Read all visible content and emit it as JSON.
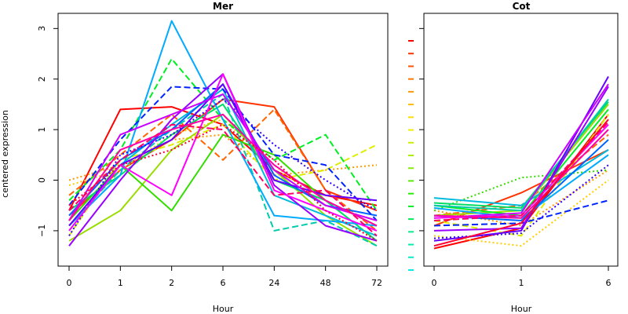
{
  "chart_data": [
    {
      "type": "line",
      "title": "Mer",
      "xlabel": "Hour",
      "ylabel": "centered expression",
      "categories": [
        "0",
        "1",
        "2",
        "6",
        "24",
        "48",
        "72"
      ],
      "ylim": [
        -1.7,
        3.3
      ],
      "yticks": [
        -1,
        0,
        1,
        2,
        3
      ],
      "series": [
        {
          "color": "#ff0000",
          "style": "solid",
          "values": [
            -0.6,
            1.4,
            1.45,
            1.1,
            0.2,
            -0.3,
            -0.5
          ]
        },
        {
          "color": "#ff3300",
          "style": "solid",
          "values": [
            -0.7,
            0.2,
            0.8,
            1.6,
            1.45,
            -0.2,
            -0.6
          ]
        },
        {
          "color": "#ff6600",
          "style": "dashed",
          "values": [
            -0.3,
            0.5,
            1.3,
            0.4,
            1.4,
            -0.2,
            -1.0
          ]
        },
        {
          "color": "#ff9900",
          "style": "dotted",
          "values": [
            0.0,
            0.3,
            0.8,
            0.9,
            0.1,
            0.2,
            0.3
          ]
        },
        {
          "color": "#ffcc00",
          "style": "dotted",
          "values": [
            -0.1,
            0.2,
            0.9,
            1.2,
            0.3,
            -0.5,
            -0.8
          ]
        },
        {
          "color": "#ddee00",
          "style": "dashed",
          "values": [
            -1.1,
            0.4,
            0.7,
            1.1,
            0.0,
            0.2,
            0.7
          ]
        },
        {
          "color": "#99dd00",
          "style": "solid",
          "values": [
            -1.2,
            -0.6,
            0.6,
            1.3,
            0.2,
            -0.7,
            -1.3
          ]
        },
        {
          "color": "#33dd00",
          "style": "solid",
          "values": [
            -0.8,
            0.3,
            -0.6,
            0.9,
            0.5,
            -0.4,
            -0.9
          ]
        },
        {
          "color": "#00ee22",
          "style": "dashed",
          "values": [
            -0.4,
            0.6,
            2.4,
            1.2,
            0.4,
            0.9,
            -0.6
          ]
        },
        {
          "color": "#00dd66",
          "style": "solid",
          "values": [
            -0.6,
            0.1,
            0.9,
            1.5,
            0.0,
            -0.4,
            -1.2
          ]
        },
        {
          "color": "#00ccaa",
          "style": "dashed",
          "values": [
            -0.9,
            0.2,
            1.0,
            1.7,
            -1.0,
            -0.8,
            -1.3
          ]
        },
        {
          "color": "#00bbdd",
          "style": "solid",
          "values": [
            -1.0,
            0.3,
            1.1,
            1.8,
            -0.3,
            -0.7,
            -1.1
          ]
        },
        {
          "color": "#00aaff",
          "style": "solid",
          "values": [
            -0.9,
            0.1,
            3.15,
            1.2,
            -0.7,
            -0.8,
            -0.9
          ]
        },
        {
          "color": "#0066ff",
          "style": "solid",
          "values": [
            -0.7,
            0.4,
            1.0,
            1.9,
            0.1,
            -0.5,
            -0.7
          ]
        },
        {
          "color": "#0022ff",
          "style": "dashed",
          "values": [
            -0.5,
            0.8,
            1.85,
            1.8,
            0.5,
            0.3,
            -0.8
          ]
        },
        {
          "color": "#3300ff",
          "style": "dotted",
          "values": [
            -1.1,
            0.5,
            0.9,
            1.6,
            0.7,
            0.0,
            -0.6
          ]
        },
        {
          "color": "#6600ff",
          "style": "solid",
          "values": [
            -0.9,
            0.3,
            0.8,
            1.9,
            0.0,
            -0.3,
            -0.4
          ]
        },
        {
          "color": "#9900ff",
          "style": "solid",
          "values": [
            -1.3,
            0.0,
            1.2,
            2.1,
            -0.1,
            -0.9,
            -1.2
          ]
        },
        {
          "color": "#cc00ff",
          "style": "solid",
          "values": [
            -0.8,
            0.9,
            1.3,
            1.7,
            0.2,
            -0.5,
            -0.8
          ]
        },
        {
          "color": "#ff00ff",
          "style": "solid",
          "values": [
            -1.0,
            0.3,
            -0.3,
            2.1,
            -0.2,
            -0.6,
            -1.0
          ]
        },
        {
          "color": "#ff00aa",
          "style": "solid",
          "values": [
            -0.8,
            0.6,
            1.0,
            1.3,
            0.3,
            -0.4,
            -0.9
          ]
        },
        {
          "color": "#ff0066",
          "style": "dashed",
          "values": [
            -0.6,
            0.4,
            1.1,
            1.0,
            -0.3,
            -0.2,
            -1.1
          ]
        },
        {
          "color": "#ff0033",
          "style": "dotted",
          "values": [
            -0.5,
            0.3,
            0.6,
            1.1,
            0.4,
            -0.6,
            -1.2
          ]
        }
      ]
    },
    {
      "type": "line",
      "title": "Cot",
      "xlabel": "Hour",
      "categories": [
        "0",
        "1",
        "6"
      ],
      "ylim": [
        -1.7,
        3.3
      ],
      "series": [
        {
          "color": "#ff0000",
          "style": "solid",
          "values": [
            -1.35,
            -0.95,
            1.3
          ]
        },
        {
          "color": "#ff3300",
          "style": "solid",
          "values": [
            -0.9,
            -0.25,
            0.6
          ]
        },
        {
          "color": "#ff6600",
          "style": "dashed",
          "values": [
            -0.7,
            -0.5,
            0.9
          ]
        },
        {
          "color": "#ff9900",
          "style": "dotted",
          "values": [
            -0.6,
            -0.9,
            0.2
          ]
        },
        {
          "color": "#ffcc00",
          "style": "dotted",
          "values": [
            -1.1,
            -1.3,
            0.0
          ]
        },
        {
          "color": "#ddee00",
          "style": "dashed",
          "values": [
            -0.8,
            -1.1,
            1.3
          ]
        },
        {
          "color": "#99dd00",
          "style": "solid",
          "values": [
            -0.7,
            -0.6,
            1.5
          ]
        },
        {
          "color": "#33dd00",
          "style": "dotted",
          "values": [
            -0.6,
            0.05,
            0.2
          ]
        },
        {
          "color": "#00ee22",
          "style": "solid",
          "values": [
            -0.5,
            -0.7,
            1.4
          ]
        },
        {
          "color": "#00dd66",
          "style": "solid",
          "values": [
            -0.45,
            -0.55,
            1.55
          ]
        },
        {
          "color": "#00ccaa",
          "style": "solid",
          "values": [
            -0.5,
            -0.6,
            1.6
          ]
        },
        {
          "color": "#00bbdd",
          "style": "solid",
          "values": [
            -0.35,
            -0.5,
            0.6
          ]
        },
        {
          "color": "#00aaff",
          "style": "solid",
          "values": [
            -0.55,
            -0.75,
            0.5
          ]
        },
        {
          "color": "#0066ff",
          "style": "solid",
          "values": [
            -0.7,
            -0.8,
            0.8
          ]
        },
        {
          "color": "#0022ff",
          "style": "dashed",
          "values": [
            -0.9,
            -0.85,
            -0.4
          ]
        },
        {
          "color": "#3300ff",
          "style": "dotted",
          "values": [
            -1.15,
            -1.05,
            0.3
          ]
        },
        {
          "color": "#6600ff",
          "style": "solid",
          "values": [
            -1.2,
            -1.0,
            2.05
          ]
        },
        {
          "color": "#9900ff",
          "style": "solid",
          "values": [
            -1.0,
            -0.95,
            1.85
          ]
        },
        {
          "color": "#cc00ff",
          "style": "solid",
          "values": [
            -0.75,
            -0.65,
            1.9
          ]
        },
        {
          "color": "#ff00ff",
          "style": "solid",
          "values": [
            -0.75,
            -0.7,
            1.1
          ]
        },
        {
          "color": "#ff00aa",
          "style": "solid",
          "values": [
            -0.7,
            -0.75,
            1.0
          ]
        },
        {
          "color": "#ff0066",
          "style": "dashed",
          "values": [
            -0.8,
            -0.7,
            1.15
          ]
        },
        {
          "color": "#ff0033",
          "style": "solid",
          "values": [
            -1.3,
            -0.85,
            1.2
          ]
        }
      ]
    }
  ],
  "color_key": [
    "#ff0000",
    "#ff3300",
    "#ff5500",
    "#ff7700",
    "#ff9900",
    "#ffbb00",
    "#ffdd00",
    "#eeee00",
    "#ccee00",
    "#aaee00",
    "#88ee00",
    "#55ee00",
    "#22ee00",
    "#00ee22",
    "#00ee55",
    "#00ee88",
    "#00eeaa",
    "#00eecc",
    "#00eeee"
  ]
}
